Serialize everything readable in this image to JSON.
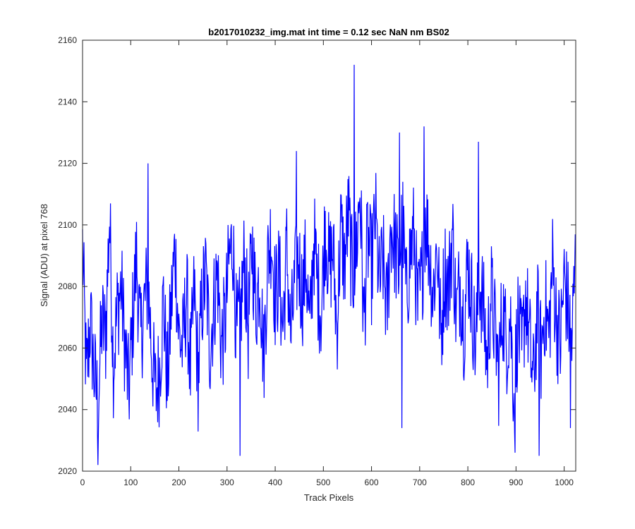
{
  "chart_data": {
    "type": "line",
    "title": "b2017010232_img.mat int time = 0.12 sec  NaN nm BS02",
    "xlabel": "Track Pixels",
    "ylabel": "Signal (ADU) at pixel 768",
    "xlim": [
      0,
      1024
    ],
    "ylim": [
      2020,
      2160
    ],
    "xticks": [
      0,
      100,
      200,
      300,
      400,
      500,
      600,
      700,
      800,
      900,
      1000
    ],
    "yticks": [
      2020,
      2040,
      2060,
      2080,
      2100,
      2120,
      2140,
      2160
    ],
    "grid": false,
    "line_color": "#0000ff",
    "series": [
      {
        "x": [
          0,
          8,
          16,
          24,
          32,
          40,
          48,
          56,
          64,
          72,
          80,
          88,
          96,
          104,
          112,
          120,
          128,
          136,
          144,
          152,
          160,
          168,
          176,
          184,
          192,
          200,
          208,
          216,
          224,
          232,
          240,
          248,
          256,
          264,
          272,
          280,
          288,
          296,
          304,
          312,
          320,
          328,
          336,
          344,
          352,
          360,
          368,
          376,
          384,
          392,
          400,
          408,
          416,
          424,
          432,
          440,
          448,
          456,
          464,
          472,
          480,
          488,
          496,
          504,
          512,
          520,
          528,
          536,
          544,
          552,
          560,
          568,
          576,
          584,
          592,
          600,
          608,
          616,
          624,
          632,
          640,
          648,
          656,
          664,
          672,
          680,
          688,
          696,
          704,
          712,
          720,
          728,
          736,
          744,
          752,
          760,
          768,
          776,
          784,
          792,
          800,
          808,
          816,
          824,
          832,
          840,
          848,
          856,
          864,
          872,
          880,
          888,
          896,
          904,
          912,
          920,
          928,
          936,
          944,
          952,
          960,
          968,
          976,
          984,
          992,
          1000,
          1008,
          1016,
          1023
        ],
        "values": [
          2093,
          2049,
          2069,
          2052,
          2042,
          2068,
          2064,
          2103,
          2055,
          2072,
          2080,
          2061,
          2045,
          2069,
          2090,
          2062,
          2074,
          2081,
          2058,
          2045,
          2053,
          2076,
          2048,
          2073,
          2093,
          2064,
          2060,
          2078,
          2052,
          2079,
          2050,
          2075,
          2084,
          2060,
          2073,
          2085,
          2061,
          2068,
          2088,
          2095,
          2063,
          2071,
          2089,
          2066,
          2094,
          2073,
          2085,
          2056,
          2087,
          2098,
          2076,
          2084,
          2067,
          2092,
          2063,
          2079,
          2090,
          2077,
          2088,
          2064,
          2096,
          2080,
          2072,
          2101,
          2085,
          2092,
          2066,
          2099,
          2087,
          2104,
          2083,
          2091,
          2112,
          2068,
          2096,
          2085,
          2103,
          2080,
          2088,
          2071,
          2100,
          2094,
          2084,
          2102,
          2076,
          2090,
          2097,
          2072,
          2081,
          2104,
          2091,
          2077,
          2095,
          2063,
          2086,
          2079,
          2098,
          2070,
          2082,
          2067,
          2088,
          2076,
          2060,
          2083,
          2073,
          2055,
          2079,
          2066,
          2052,
          2074,
          2061,
          2071,
          2045,
          2069,
          2056,
          2078,
          2062,
          2048,
          2072,
          2058,
          2074,
          2064,
          2087,
          2069,
          2061,
          2083,
          2072,
          2062,
          2087
        ],
        "outliers": [
          {
            "x": 32,
            "y": 2022
          },
          {
            "x": 136,
            "y": 2120
          },
          {
            "x": 327,
            "y": 2025
          },
          {
            "x": 444,
            "y": 2124
          },
          {
            "x": 564,
            "y": 2152
          },
          {
            "x": 658,
            "y": 2130
          },
          {
            "x": 663,
            "y": 2034
          },
          {
            "x": 709,
            "y": 2132
          },
          {
            "x": 822,
            "y": 2127
          },
          {
            "x": 898,
            "y": 2026
          },
          {
            "x": 948,
            "y": 2025
          },
          {
            "x": 1013,
            "y": 2034
          }
        ]
      }
    ]
  }
}
